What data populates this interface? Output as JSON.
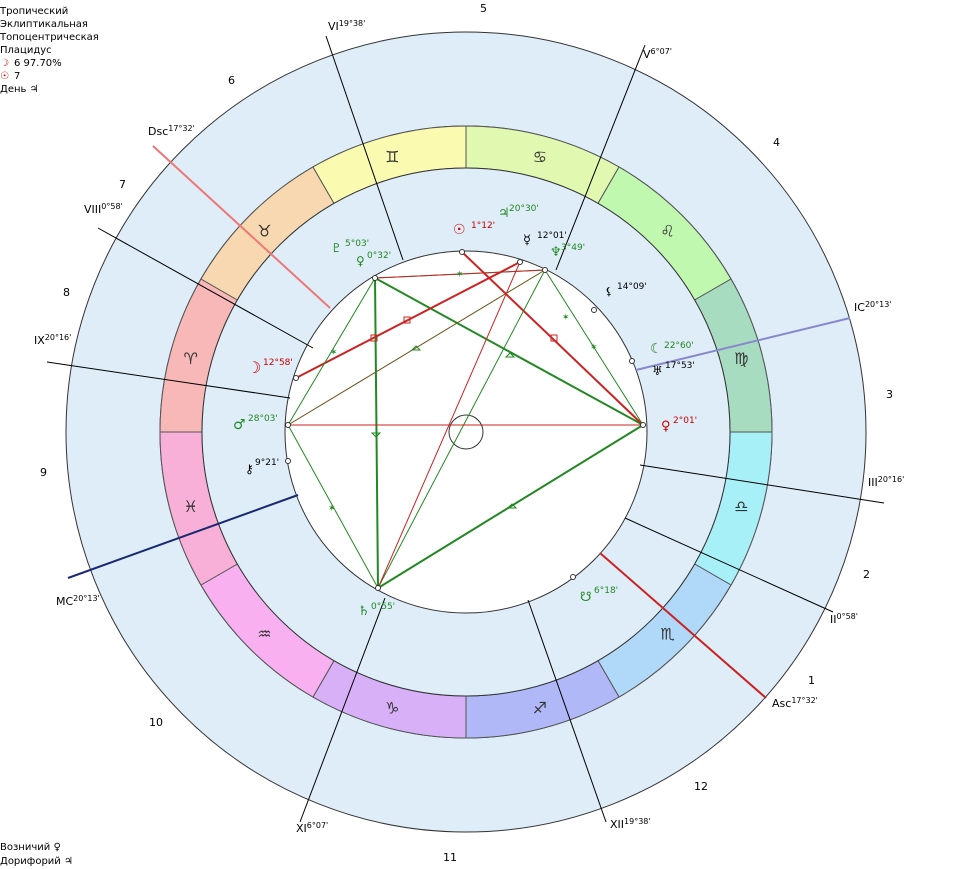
{
  "header": {
    "zodiac_type": "Тропический",
    "coordinates": "Эклиптикальная",
    "center": "Топоцентрическая",
    "house_system": "Плацидус",
    "moon_line": "6 97.70%",
    "sun_line": "7",
    "day_line": "День"
  },
  "footer": {
    "line1": "Возничий",
    "line2": "Дорифорий"
  },
  "house_numbers": [
    "1",
    "2",
    "3",
    "4",
    "5",
    "6",
    "7",
    "8",
    "9",
    "10",
    "11",
    "12"
  ],
  "axes": {
    "asc": {
      "label": "Asc",
      "degree": "17°32'"
    },
    "dsc": {
      "label": "Dsc",
      "degree": "17°32'"
    },
    "mc": {
      "label": "MC",
      "degree": "20°13'"
    },
    "ic": {
      "label": "IC",
      "degree": "20°13'"
    }
  },
  "cusps": [
    {
      "label": "II",
      "degree": "0°58'"
    },
    {
      "label": "III",
      "degree": "20°16'"
    },
    {
      "label": "V",
      "degree": "6°07'"
    },
    {
      "label": "VI",
      "degree": "19°38'"
    },
    {
      "label": "VIII",
      "degree": "0°58'"
    },
    {
      "label": "IX",
      "degree": "20°16'"
    },
    {
      "label": "XI",
      "degree": "6°07'"
    },
    {
      "label": "XII",
      "degree": "19°38'"
    }
  ],
  "signs": [
    {
      "name": "aries",
      "glyph": "♈",
      "color": "#f8b8b8"
    },
    {
      "name": "taurus",
      "glyph": "♉",
      "color": "#f8d8b0"
    },
    {
      "name": "gemini",
      "glyph": "♊",
      "color": "#fafab0"
    },
    {
      "name": "cancer",
      "glyph": "♋",
      "color": "#e0f8b0"
    },
    {
      "name": "leo",
      "glyph": "♌",
      "color": "#c0f8b0"
    },
    {
      "name": "virgo",
      "glyph": "♍",
      "color": "#a8dcc0"
    },
    {
      "name": "libra",
      "glyph": "♎",
      "color": "#a8f0f8"
    },
    {
      "name": "scorpio",
      "glyph": "♏",
      "color": "#b0d8f8"
    },
    {
      "name": "sagittarius",
      "glyph": "♐",
      "color": "#b0b8f8"
    },
    {
      "name": "capricorn",
      "glyph": "♑",
      "color": "#d8b0f8"
    },
    {
      "name": "aquarius",
      "glyph": "♒",
      "color": "#f8b0f0"
    },
    {
      "name": "pisces",
      "glyph": "♓",
      "color": "#f8b0d8"
    }
  ],
  "planets": [
    {
      "name": "sun",
      "glyph": "☉",
      "degree": "1°12'",
      "color": "#cc0000"
    },
    {
      "name": "jupiter",
      "glyph": "♃",
      "degree": "20°30'",
      "color": "#228822"
    },
    {
      "name": "mercury",
      "glyph": "☿",
      "degree": "12°01'",
      "color": "#000000"
    },
    {
      "name": "neptune",
      "glyph": "♆",
      "degree": "3°49'",
      "color": "#228822"
    },
    {
      "name": "lilith",
      "glyph": "⚸",
      "degree": "14°09'",
      "color": "#000000"
    },
    {
      "name": "moon-node-upper",
      "glyph": "☾",
      "degree": "22°60'",
      "color": "#228822"
    },
    {
      "name": "uranus",
      "glyph": "♅",
      "degree": "17°53'",
      "color": "#000000"
    },
    {
      "name": "venus-r",
      "glyph": "♀",
      "degree": "2°01'",
      "color": "#cc0000"
    },
    {
      "name": "node",
      "glyph": "☊",
      "degree": "6°18'",
      "color": "#228822"
    },
    {
      "name": "saturn",
      "glyph": "♄",
      "degree": "0°55'",
      "color": "#228822"
    },
    {
      "name": "chiron",
      "glyph": "⚷",
      "degree": "9°21'",
      "color": "#000000"
    },
    {
      "name": "mars",
      "glyph": "♂",
      "degree": "28°03'",
      "color": "#228822"
    },
    {
      "name": "moon",
      "glyph": "☽",
      "degree": "12°58'",
      "color": "#cc0000"
    },
    {
      "name": "pluto",
      "glyph": "♇",
      "degree": "5°03'",
      "color": "#228822"
    },
    {
      "name": "venus",
      "glyph": "♀",
      "degree": "0°32'",
      "color": "#228822"
    }
  ],
  "colors": {
    "outer_ring": "#deedf8",
    "inner_disc": "#ffffff",
    "trine": "#228822",
    "square": "#cc2222",
    "asc_axis": "#cc2222",
    "mc_axis": "#1a2a70",
    "ic_axis": "#8888cc",
    "dsc_axis": "#ee7777"
  }
}
